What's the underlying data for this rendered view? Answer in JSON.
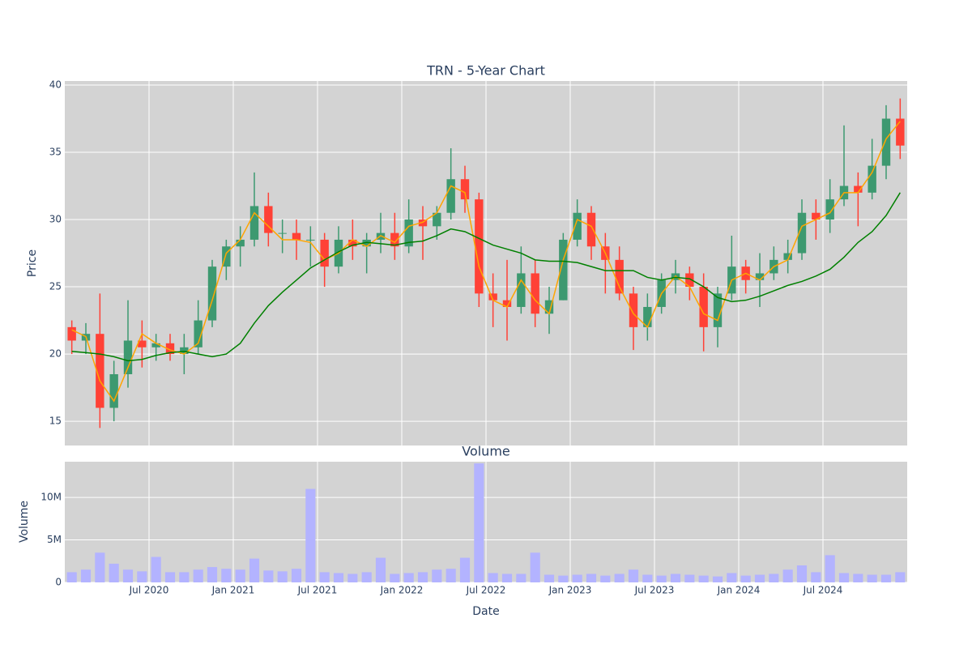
{
  "chart_data": [
    {
      "type": "candlestick",
      "title": "TRN - 5-Year Chart",
      "y_label": "Price",
      "x": [
        "2020-01",
        "2020-02",
        "2020-03",
        "2020-04",
        "2020-05",
        "2020-06",
        "2020-07",
        "2020-08",
        "2020-09",
        "2020-10",
        "2020-11",
        "2020-12",
        "2021-01",
        "2021-02",
        "2021-03",
        "2021-04",
        "2021-05",
        "2021-06",
        "2021-07",
        "2021-08",
        "2021-09",
        "2021-10",
        "2021-11",
        "2021-12",
        "2022-01",
        "2022-02",
        "2022-03",
        "2022-04",
        "2022-05",
        "2022-06",
        "2022-07",
        "2022-08",
        "2022-09",
        "2022-10",
        "2022-11",
        "2022-12",
        "2023-01",
        "2023-02",
        "2023-03",
        "2023-04",
        "2023-05",
        "2023-06",
        "2023-07",
        "2023-08",
        "2023-09",
        "2023-10",
        "2023-11",
        "2023-12",
        "2024-01",
        "2024-02",
        "2024-03",
        "2024-04",
        "2024-05",
        "2024-06",
        "2024-07",
        "2024-08",
        "2024-09",
        "2024-10",
        "2024-11",
        "2024-12"
      ],
      "open": [
        22,
        21,
        21.5,
        16,
        18.5,
        21,
        20.5,
        20.8,
        20,
        20.5,
        22.5,
        26.5,
        28,
        28.5,
        31,
        29,
        29,
        28.5,
        28.5,
        26.5,
        28.5,
        28,
        28.5,
        29,
        28,
        30,
        29.5,
        30.5,
        33,
        31.5,
        24.5,
        24,
        23.5,
        26,
        23,
        24,
        28.5,
        30.5,
        28,
        27,
        24.5,
        22,
        23.5,
        25.5,
        26,
        25,
        22,
        24.5,
        26.5,
        25.5,
        26,
        27,
        27.5,
        30.5,
        30,
        31.5,
        32.5,
        32,
        34,
        37.5
      ],
      "high": [
        22.5,
        22.3,
        24.5,
        19.5,
        24,
        22.5,
        21.5,
        21.5,
        21.5,
        24,
        27,
        28.5,
        29.5,
        33.5,
        32,
        30,
        30,
        29.5,
        29,
        29.5,
        30,
        29,
        30.5,
        30.5,
        31.5,
        31,
        31,
        35.3,
        34,
        32,
        26,
        27,
        28,
        27,
        25,
        29,
        31.5,
        31,
        29,
        28,
        25,
        24.5,
        26,
        27,
        26.5,
        26,
        25,
        28.8,
        27,
        27.5,
        28,
        28.5,
        31.5,
        31.5,
        33,
        37,
        33.5,
        36,
        38.5,
        39
      ],
      "low": [
        20,
        20,
        14.5,
        15,
        17.5,
        19,
        19.5,
        19.5,
        18.5,
        20,
        22,
        25.5,
        26.5,
        28,
        28,
        27.5,
        27,
        26.5,
        25,
        26,
        27,
        26,
        27.5,
        27,
        27.5,
        27,
        28.5,
        30,
        30.5,
        23.5,
        22,
        21,
        23,
        22,
        21.5,
        24,
        28,
        27,
        24.5,
        24,
        20.3,
        21,
        23,
        24.5,
        24,
        20.2,
        20.5,
        24,
        24.5,
        23.5,
        25.5,
        26,
        27,
        28.5,
        29,
        31,
        29.5,
        31.5,
        33,
        34.5
      ],
      "close": [
        21,
        21.5,
        16,
        18.5,
        21,
        20.5,
        20.8,
        20,
        20.5,
        22.5,
        26.5,
        28,
        28.5,
        31,
        29,
        29,
        28.5,
        28.5,
        26.5,
        28.5,
        28,
        28.5,
        29,
        28,
        30,
        29.5,
        30.5,
        33,
        31.5,
        24.5,
        24,
        23.5,
        26,
        23,
        24,
        28.5,
        30.5,
        28,
        27,
        24.5,
        22,
        23.5,
        25.5,
        26,
        25,
        22,
        24.5,
        26.5,
        25.5,
        26,
        27,
        27.5,
        30.5,
        30,
        31.5,
        32.5,
        32,
        34,
        37.5,
        35.5
      ],
      "increasing_color": "#3d9970",
      "decreasing_color": "#ff4136",
      "series": [
        {
          "color": "orange",
          "values": [
            21.8,
            21.3,
            18,
            16.5,
            19,
            21.5,
            20.8,
            20.3,
            20,
            20.8,
            24,
            27.5,
            28.5,
            30.5,
            29.5,
            28.5,
            28.5,
            28.3,
            27,
            27.5,
            28.5,
            28,
            28.8,
            28.3,
            29.5,
            29.8,
            30.5,
            32.5,
            32,
            26.5,
            24,
            23.5,
            25.5,
            24,
            23,
            27,
            30,
            29.5,
            27.5,
            25,
            23,
            22,
            24.5,
            25.8,
            25,
            23,
            22.5,
            25.5,
            26,
            25.5,
            26.5,
            27,
            29.5,
            30,
            30.5,
            32,
            32,
            33.5,
            36,
            37.3
          ]
        },
        {
          "color": "green",
          "values": [
            20.2,
            20.1,
            20,
            19.8,
            19.5,
            19.6,
            19.9,
            20.1,
            20.2,
            20,
            19.8,
            20,
            20.8,
            22.3,
            23.6,
            24.6,
            25.5,
            26.4,
            27,
            27.6,
            28.1,
            28.3,
            28.2,
            28.1,
            28.3,
            28.4,
            28.8,
            29.3,
            29.1,
            28.6,
            28.1,
            27.8,
            27.5,
            27,
            26.9,
            26.9,
            26.8,
            26.5,
            26.2,
            26.2,
            26.2,
            25.7,
            25.5,
            25.7,
            25.6,
            25,
            24.2,
            23.9,
            24,
            24.3,
            24.7,
            25.1,
            25.4,
            25.8,
            26.3,
            27.2,
            28.3,
            29.1,
            30.3,
            32
          ]
        }
      ],
      "ylim": [
        13.2,
        40.3
      ],
      "yticks": [
        15,
        20,
        25,
        30,
        35,
        40
      ],
      "grid": true
    },
    {
      "type": "bar",
      "title": "Volume",
      "y_label": "Volume",
      "x_label": "Date",
      "values": [
        1200000,
        1500000,
        3500000,
        2200000,
        1500000,
        1300000,
        3000000,
        1200000,
        1200000,
        1500000,
        1800000,
        1600000,
        1500000,
        2800000,
        1400000,
        1300000,
        1600000,
        11000000,
        1200000,
        1100000,
        1000000,
        1200000,
        2900000,
        1000000,
        1100000,
        1200000,
        1500000,
        1600000,
        2900000,
        14000000,
        1100000,
        1000000,
        1000000,
        3500000,
        900000,
        800000,
        900000,
        1000000,
        800000,
        1000000,
        1500000,
        900000,
        800000,
        1000000,
        900000,
        800000,
        700000,
        1100000,
        800000,
        900000,
        1000000,
        1500000,
        2000000,
        1200000,
        3200000,
        1100000,
        1000000,
        900000,
        900000,
        1200000
      ],
      "color": "#b3b3ff",
      "ylim": [
        0,
        14200000
      ],
      "yticks": [
        0,
        {
          "value": 5000000,
          "label": "5M"
        },
        {
          "value": 10000000,
          "label": "10M"
        }
      ],
      "xticks": [
        {
          "value": "2020-07",
          "label": "Jul 2020"
        },
        {
          "value": "2021-01",
          "label": "Jan 2021"
        },
        {
          "value": "2021-07",
          "label": "Jul 2021"
        },
        {
          "value": "2022-01",
          "label": "Jan 2022"
        },
        {
          "value": "2022-07",
          "label": "Jul 2022"
        },
        {
          "value": "2023-01",
          "label": "Jan 2023"
        },
        {
          "value": "2023-07",
          "label": "Jul 2023"
        },
        {
          "value": "2024-01",
          "label": "Jan 2024"
        },
        {
          "value": "2024-07",
          "label": "Jul 2024"
        }
      ],
      "grid": true
    }
  ]
}
